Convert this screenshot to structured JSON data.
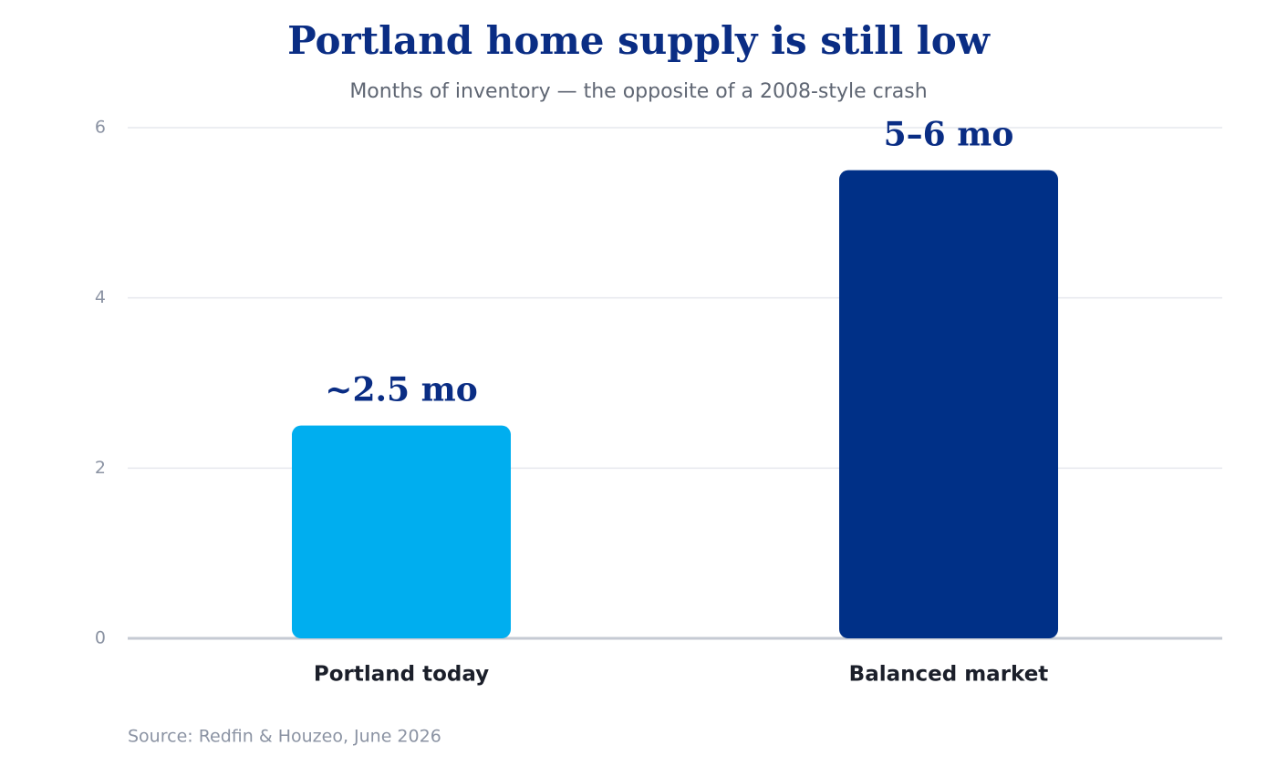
{
  "chart_data": {
    "type": "bar",
    "title": "Portland home supply is still low",
    "subtitle": "Months of inventory — the opposite of a 2008-style crash",
    "categories": [
      "Portland today",
      "Balanced market"
    ],
    "values": [
      2.5,
      5.5
    ],
    "value_labels": [
      "~2.5 mo",
      "5–6 mo"
    ],
    "colors": [
      "#00aeef",
      "#003087"
    ],
    "ylim": [
      0,
      6
    ],
    "yticks": [
      0,
      2,
      4,
      6
    ],
    "grid": true,
    "source": "Source: Redfin & Houzeo, June 2026"
  }
}
